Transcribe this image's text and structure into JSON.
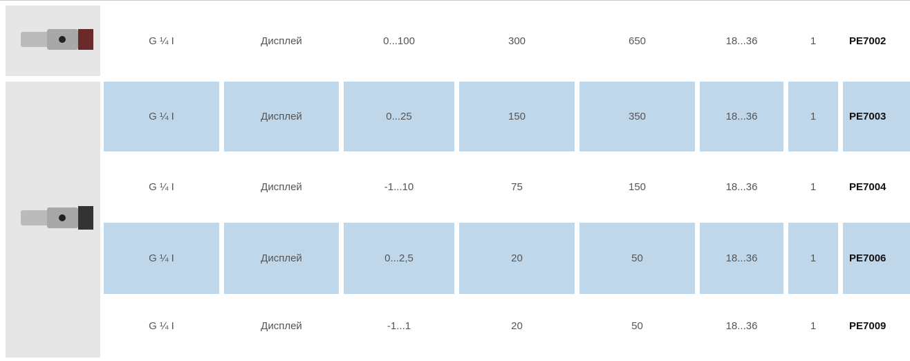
{
  "table": {
    "rows": [
      [
        "G ¼ I",
        "Дисплей",
        "0...100",
        "300",
        "650",
        "18...36",
        "1",
        "PE7002"
      ],
      [
        "G ¼ I",
        "Дисплей",
        "0...25",
        "150",
        "350",
        "18...36",
        "1",
        "PE7003"
      ],
      [
        "G ¼ I",
        "Дисплей",
        "-1...10",
        "75",
        "150",
        "18...36",
        "1",
        "PE7004"
      ],
      [
        "G ¼ I",
        "Дисплей",
        "0...2,5",
        "20",
        "50",
        "18...36",
        "1",
        "PE7006"
      ],
      [
        "G ¼ I",
        "Дисплей",
        "-1...1",
        "20",
        "50",
        "18...36",
        "1",
        "PE7009"
      ]
    ]
  }
}
